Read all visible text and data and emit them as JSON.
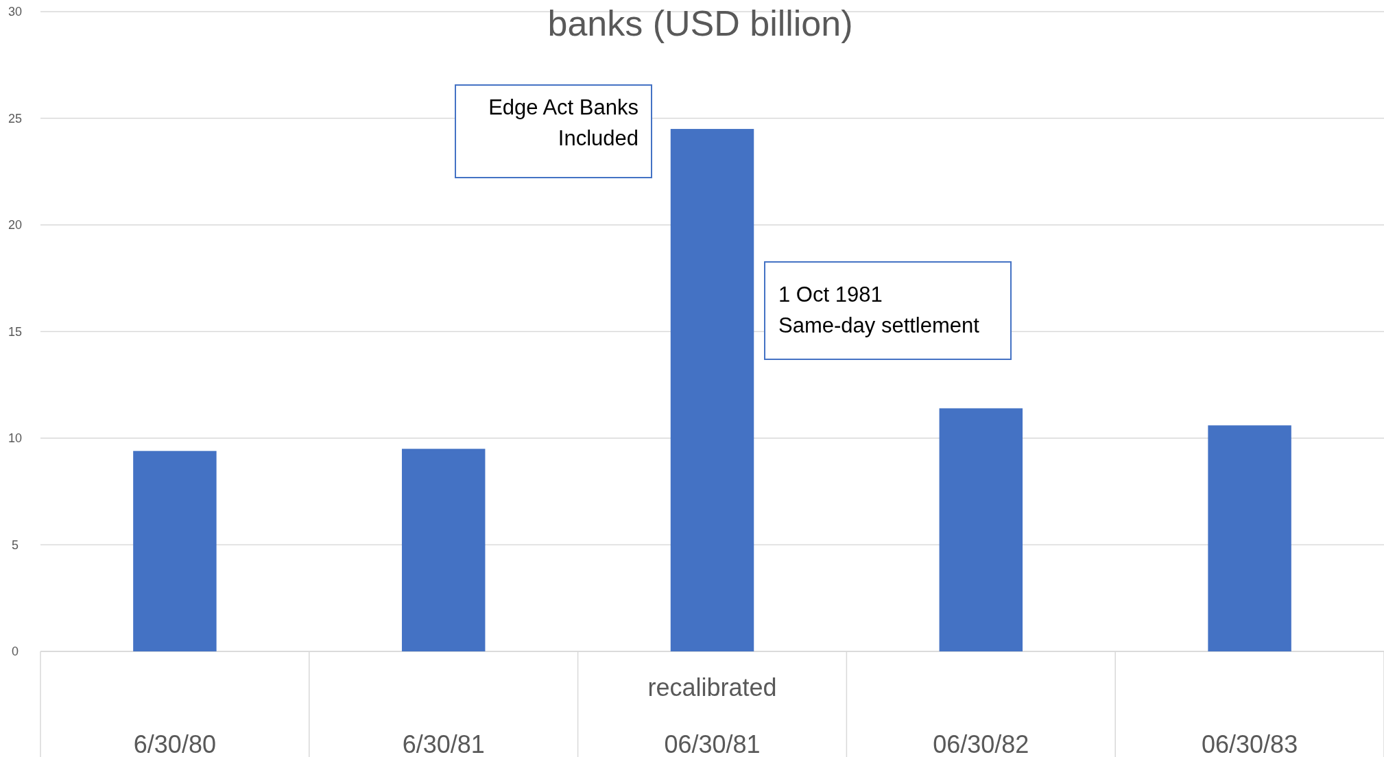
{
  "chart_data": {
    "type": "bar",
    "title": "banks (USD billion)",
    "categories": [
      "6/30/80",
      "6/30/81",
      "06/30/81",
      "06/30/82",
      "06/30/83"
    ],
    "values": [
      9.4,
      9.5,
      24.5,
      11.4,
      10.6
    ],
    "color": "#4472c4",
    "ylim": [
      0,
      30
    ],
    "yticks": [
      0,
      5,
      10,
      15,
      20,
      25,
      30
    ],
    "grid": "y",
    "annotations": [
      "recalibrated",
      "Edge Act Banks\nIncluded",
      "1 Oct 1981\nSame-day settlement"
    ]
  }
}
